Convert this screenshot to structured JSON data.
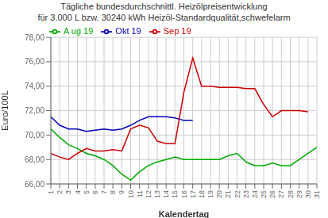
{
  "chart_data": {
    "type": "line",
    "title": "Tägliche bundesdurchschnittl. Heizölpreisentwicklung",
    "subtitle": "für 3.000 L bzw. 30240 kWh Heizöl-Standardqualität,schwefelarm",
    "x_label": "Kalendertag",
    "y_label": "Euro/100L",
    "x": [
      1,
      2,
      3,
      4,
      5,
      6,
      7,
      8,
      9,
      10,
      11,
      12,
      13,
      14,
      15,
      16,
      17,
      18,
      19,
      20,
      21,
      22,
      23,
      24,
      25,
      26,
      27,
      28,
      29,
      30,
      31
    ],
    "xlim": [
      1,
      31
    ],
    "xticks": [
      1,
      2,
      3,
      4,
      5,
      6,
      7,
      8,
      9,
      10,
      11,
      12,
      13,
      14,
      15,
      16,
      17,
      18,
      19,
      20,
      21,
      22,
      23,
      24,
      25,
      26,
      27,
      28,
      29,
      30,
      31
    ],
    "ylim": [
      66.0,
      78.0
    ],
    "yticks": [
      {
        "value": 66.0,
        "label": "66,00"
      },
      {
        "value": 68.0,
        "label": "68,00"
      },
      {
        "value": 70.0,
        "label": "70,00"
      },
      {
        "value": 72.0,
        "label": "72,00"
      },
      {
        "value": 74.0,
        "label": "74,00"
      },
      {
        "value": 76.0,
        "label": "76,00"
      },
      {
        "value": 78.0,
        "label": "78,00"
      }
    ],
    "grid": true,
    "legend": "upper left",
    "series": [
      {
        "name": "Okt 19",
        "color": "#0000bb",
        "values": [
          71.5,
          70.8,
          70.5,
          70.5,
          70.3,
          70.4,
          70.5,
          70.4,
          70.5,
          70.8,
          71.2,
          71.5,
          71.5,
          71.5,
          71.4,
          71.2,
          71.2,
          null,
          null,
          null,
          null,
          null,
          null,
          null,
          null,
          null,
          null,
          null,
          null,
          null,
          null
        ]
      },
      {
        "name": "A ug 19",
        "color": "#00aa00",
        "values": [
          70.5,
          69.8,
          69.2,
          68.9,
          68.5,
          68.3,
          68.0,
          67.5,
          66.8,
          66.3,
          67.0,
          67.5,
          67.8,
          68.0,
          68.2,
          68.0,
          68.0,
          68.0,
          68.0,
          68.0,
          68.3,
          68.5,
          67.8,
          67.5,
          67.5,
          67.7,
          67.5,
          67.5,
          68.0,
          68.5,
          69.0
        ]
      },
      {
        "name": "Sep 19",
        "color": "#cc0000",
        "values": [
          68.5,
          68.2,
          68.0,
          68.5,
          68.9,
          68.7,
          68.7,
          68.8,
          68.7,
          70.5,
          70.8,
          70.6,
          69.5,
          69.3,
          69.3,
          73.5,
          76.3,
          74.0,
          74.0,
          73.9,
          73.9,
          73.9,
          73.8,
          73.8,
          72.5,
          71.5,
          72.0,
          72.0,
          72.0,
          71.9,
          null
        ]
      }
    ]
  }
}
